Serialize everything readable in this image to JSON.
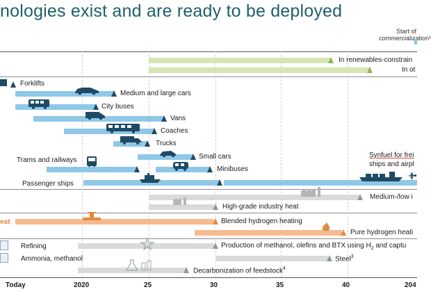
{
  "title": "nologies exist and are ready to be deployed",
  "start_label": "Start of commercialization¹",
  "sections": {
    "heat_label": "eat"
  },
  "rows": {
    "renewables": "In renewables-constrain",
    "in_ot": "In ot",
    "forklifts": "Forklifts",
    "medium_large_cars": "Medium and large cars",
    "city_buses": "City buses",
    "vans": "Vans",
    "coaches": "Coaches",
    "trucks": "Trucks",
    "small_cars": "Small cars",
    "trams_railways": "Trams and railways",
    "minibuses": "Minibuses",
    "passenger_ships": "Passenger ships",
    "synfuel": "Synfuel for frei",
    "ships_airplanes": "ships and airpl",
    "medium_low_industry": "Medium-/low i",
    "high_grade_heat": "High-grade industry heat",
    "blended_hydrogen": "Blended hydrogen heating",
    "pure_hydrogen": "Pure hydrogen heati",
    "refining": "Refining",
    "methanol_production": "Production of methanol, olefins and BTX using H",
    "methanol_sub": "2",
    "methanol_tail": " and captu",
    "ammonia": "Ammonia, methanol",
    "steel": "Steel",
    "steel_sup": "3",
    "decarbonization": "Decarbonization of feedstock",
    "decarbonization_sup": "4"
  },
  "axis": {
    "ticks": [
      "Today",
      "2020",
      "25",
      "30",
      "35",
      "40",
      "204"
    ]
  },
  "colors": {
    "transport_bar": "#8fc7e8",
    "power_bar": "#d5e5b4",
    "industry_bar": "#dadada",
    "heat_bar": "#f6ba8e",
    "marker_dark": "#1e4a63",
    "title": "#1f5f6b"
  }
}
